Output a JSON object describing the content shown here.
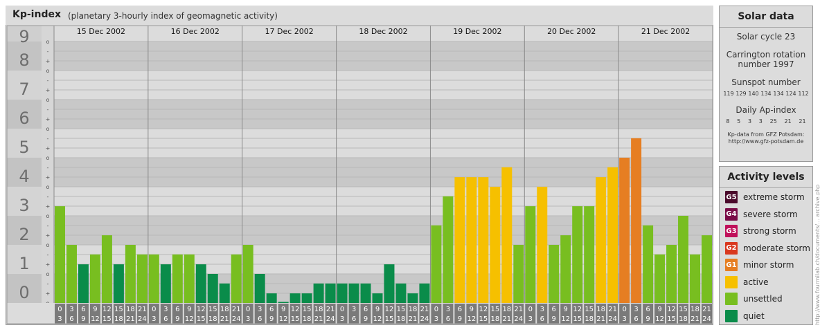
{
  "header": {
    "title": "Kp-index",
    "subtitle": "(planetary 3-hourly index of geomagnetic activity)"
  },
  "chart_data": {
    "type": "bar",
    "title": "Kp-index",
    "subtitle": "(planetary 3-hourly index of geomagnetic activity)",
    "days": [
      "15 Dec 2002",
      "16 Dec 2002",
      "17 Dec 2002",
      "18 Dec 2002",
      "19 Dec 2002",
      "20 Dec 2002",
      "21 Dec 2002"
    ],
    "interval_labels": [
      [
        "0",
        "3"
      ],
      [
        "3",
        "6"
      ],
      [
        "6",
        "9"
      ],
      [
        "9",
        "12"
      ],
      [
        "12",
        "15"
      ],
      [
        "15",
        "18"
      ],
      [
        "18",
        "21"
      ],
      [
        "21",
        "24"
      ]
    ],
    "y_ticks": [
      "0",
      "1",
      "2",
      "3",
      "4",
      "5",
      "6",
      "7",
      "8",
      "9"
    ],
    "sub_marks": [
      "o",
      "+",
      "-"
    ],
    "ylim": [
      0,
      9.3
    ],
    "values": [
      3.33,
      2.0,
      1.33,
      1.67,
      2.33,
      1.33,
      2.0,
      1.67,
      1.67,
      1.33,
      1.67,
      1.67,
      1.33,
      1.0,
      0.67,
      1.67,
      2.0,
      1.0,
      0.33,
      0.0,
      0.33,
      0.33,
      0.67,
      0.67,
      0.67,
      0.67,
      0.67,
      0.33,
      1.33,
      0.67,
      0.33,
      0.67,
      2.67,
      3.67,
      4.33,
      4.33,
      4.33,
      4.0,
      4.67,
      2.0,
      3.33,
      4.0,
      2.0,
      2.33,
      3.33,
      3.33,
      4.33,
      4.67,
      5.0,
      5.67,
      2.67,
      1.67,
      2.0,
      3.0,
      1.67,
      2.33
    ],
    "grid": true
  },
  "colors": {
    "quiet": "#0a8c4a",
    "unsettled": "#78be20",
    "active": "#f6c000",
    "G1": "#e67e22",
    "G2": "#d9381e",
    "G3": "#c0105a",
    "G4": "#7a0c47",
    "G5": "#4a0a2b",
    "band_dark": "#c8c8c8",
    "band_light": "#dcdcdc"
  },
  "solar": {
    "title": "Solar data",
    "cycle": "Solar cycle 23",
    "carrington_line1": "Carrington rotation",
    "carrington_line2": "number 1997",
    "sunspot_title": "Sunspot number",
    "sunspot_numbers": [
      "119",
      "129",
      "140",
      "134",
      "134",
      "124",
      "112"
    ],
    "ap_title": "Daily Ap-index",
    "ap_numbers": [
      "8",
      "5",
      "3",
      "3",
      "25",
      "21",
      "21"
    ],
    "credit_line1": "Kp-data from GFZ Potsdam:",
    "credit_line2": "http://www.gfz-potsdam.de"
  },
  "activity": {
    "title": "Activity levels",
    "items": [
      {
        "code": "G5",
        "label": "extreme storm",
        "color": "#4a0a2b"
      },
      {
        "code": "G4",
        "label": "severe storm",
        "color": "#7a0c47"
      },
      {
        "code": "G3",
        "label": "strong storm",
        "color": "#c0105a"
      },
      {
        "code": "G2",
        "label": "moderate storm",
        "color": "#d9381e"
      },
      {
        "code": "G1",
        "label": "minor storm",
        "color": "#e67e22"
      },
      {
        "code": "",
        "label": "active",
        "color": "#f6c000"
      },
      {
        "code": "",
        "label": "unsettled",
        "color": "#78be20"
      },
      {
        "code": "",
        "label": "quiet",
        "color": "#0a8c4a"
      }
    ]
  },
  "watermark": "http://www.fourmilab.ch/documents/... archive.php"
}
